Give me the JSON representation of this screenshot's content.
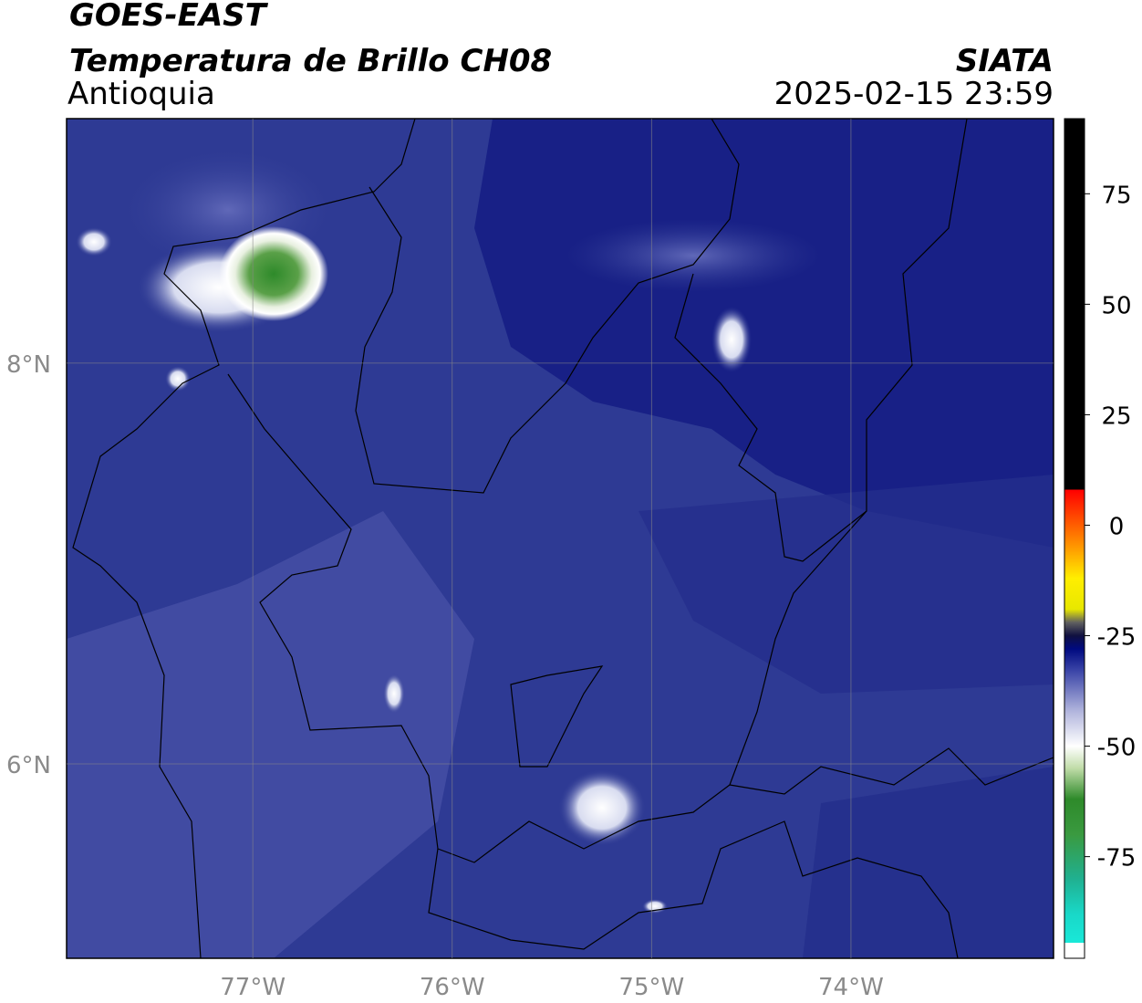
{
  "header": {
    "title": "GOES-EAST",
    "subtitle": "Temperatura de Brillo CH08",
    "region": "Antioquia",
    "source": "SIATA",
    "datetime": "2025-02-15 23:59"
  },
  "map": {
    "xlim": [
      -77.934,
      -72.984
    ],
    "ylim": [
      5.03,
      9.22
    ],
    "xticks": [
      {
        "value": -77,
        "label": "77°W"
      },
      {
        "value": -76,
        "label": "76°W"
      },
      {
        "value": -75,
        "label": "75°W"
      },
      {
        "value": -74,
        "label": "74°W"
      }
    ],
    "yticks": [
      {
        "value": 6,
        "label": "6°N"
      },
      {
        "value": 8,
        "label": "8°N"
      }
    ],
    "grid": true
  },
  "colorbar": {
    "lim": [
      -98,
      92
    ],
    "ticks": [
      -75,
      -50,
      -25,
      0,
      25,
      50,
      75
    ],
    "stops": [
      {
        "value": -98,
        "color": "#ffffff"
      },
      {
        "value": -94.5,
        "color": "#ffffff"
      },
      {
        "value": -94.5,
        "color": "#19e8d8"
      },
      {
        "value": -88,
        "color": "#19d8c8"
      },
      {
        "value": -80,
        "color": "#20b090"
      },
      {
        "value": -70,
        "color": "#3a9a40"
      },
      {
        "value": -62,
        "color": "#2e8a2a"
      },
      {
        "value": -55,
        "color": "#c0dca8"
      },
      {
        "value": -50,
        "color": "#ffffff"
      },
      {
        "value": -42,
        "color": "#b0b4dc"
      },
      {
        "value": -33,
        "color": "#3c46a8"
      },
      {
        "value": -28,
        "color": "#000a80"
      },
      {
        "value": -25,
        "color": "#101040"
      },
      {
        "value": -22,
        "color": "#606060"
      },
      {
        "value": -19,
        "color": "#e8e800"
      },
      {
        "value": -12,
        "color": "#ffee00"
      },
      {
        "value": -5,
        "color": "#ff9900"
      },
      {
        "value": 8,
        "color": "#ff0000"
      },
      {
        "value": 8,
        "color": "#000000"
      },
      {
        "value": 92,
        "color": "#000000"
      }
    ]
  }
}
